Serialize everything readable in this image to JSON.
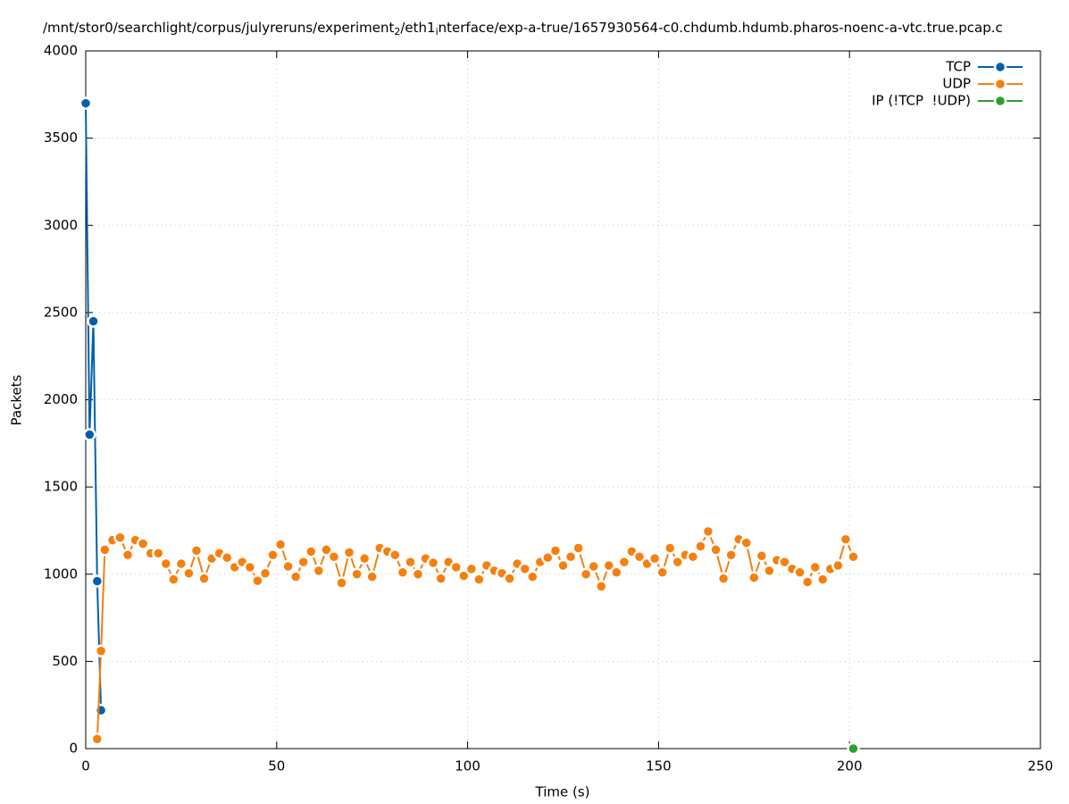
{
  "chart_data": {
    "type": "line",
    "title_segments": [
      {
        "text": "/mnt/stor0/searchlight/corpus/julyreruns/experiment",
        "sub": false
      },
      {
        "text": "2",
        "sub": true
      },
      {
        "text": "/eth1",
        "sub": false
      },
      {
        "text": "i",
        "sub": true
      },
      {
        "text": "nterface/exp-a-true/1657930564-c0.chdumb.hdumb.pharos-noenc-a-vtc.true.pcap.c",
        "sub": false
      }
    ],
    "x_label": "Time (s)",
    "y_label": "Packets",
    "xlim": [
      0,
      250
    ],
    "xticks": [
      0,
      50,
      100,
      150,
      200,
      250
    ],
    "ylim": [
      0,
      4000
    ],
    "yticks": [
      0,
      500,
      1000,
      1500,
      2000,
      2500,
      3000,
      3500,
      4000
    ],
    "grid": true,
    "legend": "top-right",
    "series": [
      {
        "name": "TCP",
        "color": "#0060ad",
        "x": [
          0,
          1,
          2,
          3,
          4
        ],
        "values": [
          3700,
          1800,
          2450,
          960,
          220
        ]
      },
      {
        "name": "UDP",
        "color": "#f5800f",
        "x": [
          3,
          4,
          5,
          7,
          9,
          11,
          13,
          15,
          17,
          19,
          21,
          23,
          25,
          27,
          29,
          31,
          33,
          35,
          37,
          39,
          41,
          43,
          45,
          47,
          49,
          51,
          53,
          55,
          57,
          59,
          61,
          63,
          65,
          67,
          69,
          71,
          73,
          75,
          77,
          79,
          81,
          83,
          85,
          87,
          89,
          91,
          93,
          95,
          97,
          99,
          101,
          103,
          105,
          107,
          109,
          111,
          113,
          115,
          117,
          119,
          121,
          123,
          125,
          127,
          129,
          131,
          133,
          135,
          137,
          139,
          141,
          143,
          145,
          147,
          149,
          151,
          153,
          155,
          157,
          159,
          161,
          163,
          165,
          167,
          169,
          171,
          173,
          175,
          177,
          179,
          181,
          183,
          185,
          187,
          189,
          191,
          193,
          195,
          197,
          199,
          201
        ],
        "values": [
          55,
          560,
          1140,
          1195,
          1210,
          1110,
          1195,
          1175,
          1120,
          1120,
          1060,
          970,
          1060,
          1005,
          1135,
          975,
          1090,
          1120,
          1095,
          1040,
          1070,
          1040,
          962,
          1005,
          1110,
          1170,
          1045,
          985,
          1070,
          1130,
          1020,
          1140,
          1100,
          950,
          1125,
          1000,
          1090,
          985,
          1150,
          1130,
          1110,
          1010,
          1070,
          1000,
          1090,
          1065,
          975,
          1070,
          1040,
          990,
          1030,
          970,
          1050,
          1020,
          1005,
          975,
          1060,
          1030,
          985,
          1070,
          1095,
          1135,
          1050,
          1100,
          1150,
          1000,
          1045,
          930,
          1050,
          1010,
          1070,
          1130,
          1100,
          1060,
          1090,
          1010,
          1150,
          1070,
          1110,
          1100,
          1160,
          1245,
          1140,
          975,
          1110,
          1200,
          1180,
          980,
          1105,
          1020,
          1080,
          1070,
          1030,
          1010,
          955,
          1040,
          970,
          1030,
          1050,
          1200,
          1100
        ]
      },
      {
        "name": "IP (!TCP  !UDP)",
        "color": "#2ca02c",
        "x": [
          201
        ],
        "values": [
          0
        ]
      }
    ]
  }
}
